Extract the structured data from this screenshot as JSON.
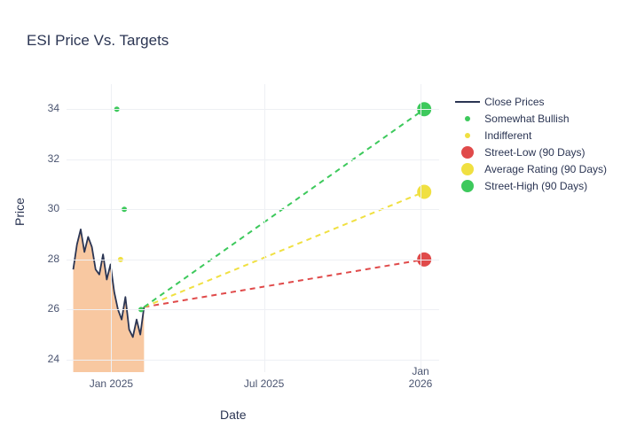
{
  "chart": {
    "title": "ESI Price Vs. Targets",
    "x_axis_label": "Date",
    "y_axis_label": "Price",
    "background_color": "#ffffff",
    "grid_color": "#eef0f4",
    "text_color": "#2b3553",
    "ylim": [
      23.5,
      35
    ],
    "y_ticks": [
      24,
      26,
      28,
      30,
      32,
      34
    ],
    "x_ticks": [
      {
        "label": "Jan 2025",
        "t": 0.12
      },
      {
        "label": "Jul 2025",
        "t": 0.53
      },
      {
        "label": "Jan 2026",
        "t": 0.95
      }
    ],
    "area_fill_color": "#f5b682",
    "area_fill_opacity": 0.75,
    "close_line_color": "#2b3553",
    "close_line_width": 1.8,
    "close_prices": [
      {
        "t": 0.018,
        "p": 27.6
      },
      {
        "t": 0.028,
        "p": 28.6
      },
      {
        "t": 0.038,
        "p": 29.2
      },
      {
        "t": 0.048,
        "p": 28.3
      },
      {
        "t": 0.058,
        "p": 28.9
      },
      {
        "t": 0.068,
        "p": 28.5
      },
      {
        "t": 0.078,
        "p": 27.6
      },
      {
        "t": 0.088,
        "p": 27.4
      },
      {
        "t": 0.098,
        "p": 28.2
      },
      {
        "t": 0.108,
        "p": 27.2
      },
      {
        "t": 0.118,
        "p": 27.8
      },
      {
        "t": 0.128,
        "p": 26.7
      },
      {
        "t": 0.138,
        "p": 26.0
      },
      {
        "t": 0.148,
        "p": 25.6
      },
      {
        "t": 0.158,
        "p": 26.5
      },
      {
        "t": 0.168,
        "p": 25.2
      },
      {
        "t": 0.178,
        "p": 24.9
      },
      {
        "t": 0.188,
        "p": 25.6
      },
      {
        "t": 0.198,
        "p": 25.0
      },
      {
        "t": 0.208,
        "p": 26.1
      }
    ],
    "analyst_points": [
      {
        "t": 0.135,
        "p": 34.0,
        "color": "#3dc95c",
        "size": 6
      },
      {
        "t": 0.155,
        "p": 30.0,
        "color": "#3dc95c",
        "size": 6
      },
      {
        "t": 0.145,
        "p": 28.0,
        "color": "#f0e041",
        "size": 6
      },
      {
        "t": 0.2,
        "p": 26.0,
        "color": "#3dc95c",
        "size": 6
      }
    ],
    "projection_lines": [
      {
        "from_t": 0.208,
        "from_p": 26.1,
        "to_t": 0.96,
        "to_p": 28.0,
        "color": "#e04a4a",
        "dash": "6,5",
        "width": 2
      },
      {
        "from_t": 0.208,
        "from_p": 26.1,
        "to_t": 0.96,
        "to_p": 30.7,
        "color": "#f0e041",
        "dash": "6,5",
        "width": 2
      },
      {
        "from_t": 0.208,
        "from_p": 26.1,
        "to_t": 0.96,
        "to_p": 34.0,
        "color": "#3dc95c",
        "dash": "6,5",
        "width": 2
      }
    ],
    "target_points": [
      {
        "t": 0.96,
        "p": 28.0,
        "color": "#e04a4a",
        "size": 16
      },
      {
        "t": 0.96,
        "p": 30.7,
        "color": "#f0e041",
        "size": 16
      },
      {
        "t": 0.96,
        "p": 34.0,
        "color": "#3dc95c",
        "size": 16
      }
    ]
  },
  "legend": {
    "items": [
      {
        "label": "Close Prices",
        "type": "line",
        "color": "#2b3553"
      },
      {
        "label": "Somewhat Bullish",
        "type": "dot-small",
        "color": "#3dc95c"
      },
      {
        "label": "Indifferent",
        "type": "dot-small",
        "color": "#f0e041"
      },
      {
        "label": "Street-Low (90 Days)",
        "type": "dot-big",
        "color": "#e04a4a"
      },
      {
        "label": "Average Rating (90 Days)",
        "type": "dot-big",
        "color": "#f0e041"
      },
      {
        "label": "Street-High (90 Days)",
        "type": "dot-big",
        "color": "#3dc95c"
      }
    ]
  }
}
